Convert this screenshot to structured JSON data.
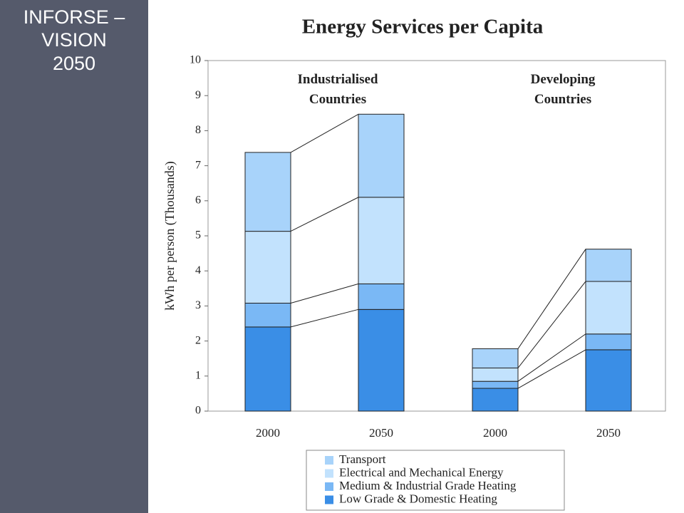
{
  "slide": {
    "title_lines": [
      "INFORSE –",
      "VISION",
      "2050"
    ]
  },
  "chart_data": {
    "type": "stacked-bar",
    "title": "Energy Services per Capita",
    "y_label": "kWh per person (Thousands)",
    "categories": [
      "2000",
      "2050",
      "2000",
      "2050"
    ],
    "group_labels": [
      [
        "Industrialised",
        "Countries"
      ],
      [
        "Developing",
        "Countries"
      ]
    ],
    "series": [
      {
        "name": "Low Grade & Domestic Heating",
        "color": "#3a8ee6",
        "values": [
          2.4,
          2.9,
          0.65,
          1.75
        ]
      },
      {
        "name": "Medium & Industrial Grade Heating",
        "color": "#7ab8f5",
        "values": [
          0.68,
          0.73,
          0.2,
          0.45
        ]
      },
      {
        "name": "Electrical and Mechanical Energy",
        "color": "#c2e2fd",
        "values": [
          2.05,
          2.47,
          0.38,
          1.5
        ]
      },
      {
        "name": "Transport",
        "color": "#a8d3fa",
        "values": [
          2.25,
          2.37,
          0.55,
          0.92
        ]
      }
    ],
    "ylim": [
      0,
      10
    ],
    "yticks": [
      0,
      1,
      2,
      3,
      4,
      5,
      6,
      7,
      8,
      9,
      10
    ]
  }
}
